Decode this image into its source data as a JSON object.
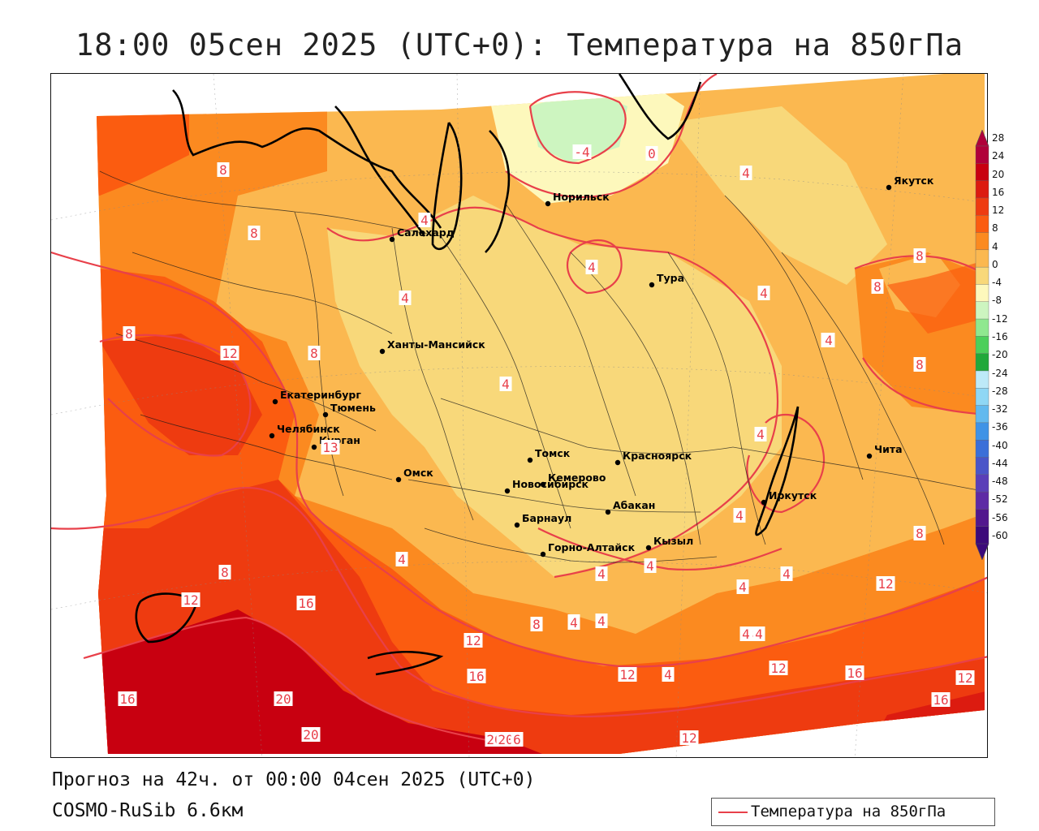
{
  "title": "18:00 05сен 2025 (UTC+0): Температура на 850гПа",
  "footer": {
    "forecast": "Прогноз на 42ч. от 00:00 04сен 2025 (UTC+0)",
    "model": "COSMO-RuSib 6.6км"
  },
  "legend": {
    "label": "Температура на 850гПа",
    "line_color": "#e8404a"
  },
  "colorbar": {
    "ticks": [
      "28",
      "24",
      "20",
      "16",
      "12",
      "8",
      "4",
      "0",
      "-4",
      "-8",
      "-12",
      "-16",
      "-20",
      "-24",
      "-28",
      "-32",
      "-36",
      "-40",
      "-44",
      "-48",
      "-52",
      "-56",
      "-60"
    ],
    "colors": [
      "#b0003a",
      "#c80010",
      "#dc1b10",
      "#ee3b10",
      "#fb5c10",
      "#fb8a20",
      "#fbb850",
      "#f8d87a",
      "#fdf8bc",
      "#cdf5c0",
      "#8fe88f",
      "#4ccf5a",
      "#21a83a",
      "#bde9f8",
      "#8fd7f5",
      "#62b9ee",
      "#3f93e6",
      "#3b6fd8",
      "#4a55c8",
      "#5a3fb8",
      "#5e2aa5",
      "#52188e",
      "#3c0a7a"
    ]
  },
  "cities": [
    {
      "name": "Якутск"
    },
    {
      "name": "Норильск"
    },
    {
      "name": "Салехард"
    },
    {
      "name": "Тура"
    },
    {
      "name": "Ханты-Мансийск"
    },
    {
      "name": "Екатеринбург"
    },
    {
      "name": "Тюмень"
    },
    {
      "name": "Челябинск"
    },
    {
      "name": "Курган"
    },
    {
      "name": "Омск"
    },
    {
      "name": "Новосибирск"
    },
    {
      "name": "Томск"
    },
    {
      "name": "Кемерово"
    },
    {
      "name": "Красноярск"
    },
    {
      "name": "Абакан"
    },
    {
      "name": "Барнаул"
    },
    {
      "name": "Горно-Алтайск"
    },
    {
      "name": "Кызыл"
    },
    {
      "name": "Иркутск"
    },
    {
      "name": "Чита"
    }
  ],
  "contour_labels": [
    "8",
    "8",
    "4",
    "4",
    "-4",
    "0",
    "4",
    "4",
    "4",
    "4",
    "8",
    "8",
    "12",
    "8",
    "8",
    "8",
    "4",
    "4",
    "4",
    "4",
    "4",
    "8",
    "12",
    "16",
    "16",
    "12",
    "12",
    "16",
    "12",
    "12",
    "12",
    "16",
    "12",
    "16",
    "20",
    "20",
    "20",
    "20",
    "6",
    "12",
    "8",
    "4",
    "4",
    "4",
    "4",
    "8",
    "8",
    "4",
    "4",
    "4",
    "4",
    "8",
    "4",
    "4",
    "13",
    "4",
    "0"
  ]
}
